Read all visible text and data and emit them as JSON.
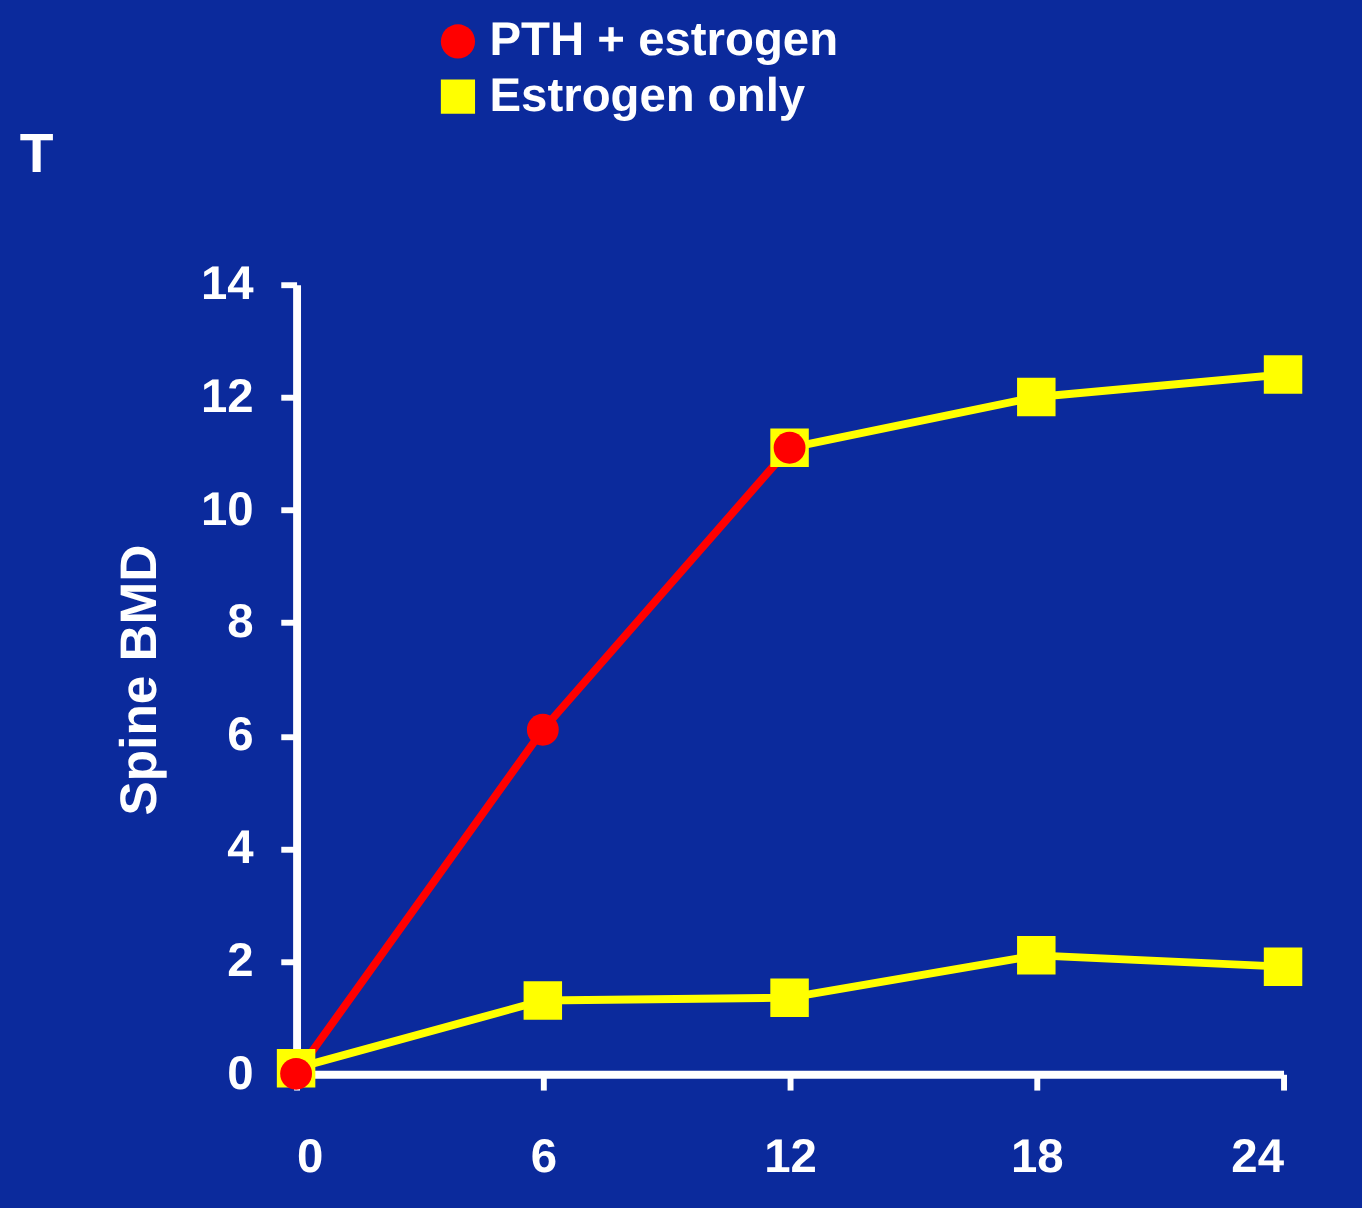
{
  "chart_data": {
    "type": "line",
    "annotations": [
      "T"
    ],
    "ylabel": "Spine BMD",
    "x": [
      0,
      6,
      12,
      18,
      24
    ],
    "series": [
      {
        "name": "PTH + estrogen",
        "color": "#ff0000",
        "marker": "circle",
        "values": [
          0,
          6.1,
          11.1,
          null,
          null
        ]
      },
      {
        "name": "Estrogen only",
        "color": "#ffff00",
        "marker": "square",
        "values": [
          0.1,
          1.3,
          1.35,
          2.1,
          1.9
        ]
      },
      {
        "color": "#ffff00",
        "marker": "square",
        "values": [
          null,
          null,
          11.1,
          12.0,
          12.4
        ]
      }
    ],
    "xlim": [
      0,
      24
    ],
    "xticks": [
      0,
      6,
      12,
      18,
      24
    ],
    "ylim": [
      0,
      14
    ],
    "yticks": [
      0,
      2,
      4,
      6,
      8,
      10,
      12,
      14
    ],
    "grid": false,
    "legend": "top",
    "line_style": "solid"
  }
}
